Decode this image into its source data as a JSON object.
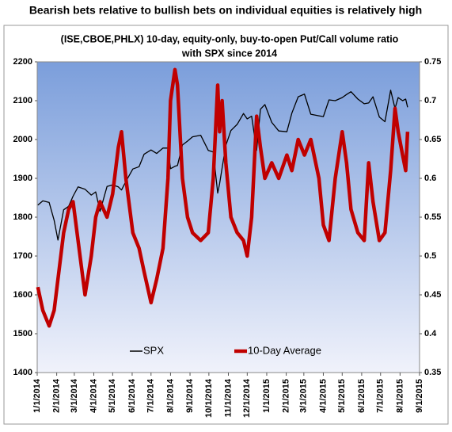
{
  "chart_data": {
    "type": "line",
    "suptitle": "Bearish bets relative to bullish bets on individual equities is relatively high",
    "title": [
      "(ISE,CBOE,PHLX) 10-day, equity-only, buy-to-open Put/Call volume ratio",
      "with SPX since 2014"
    ],
    "x": [
      "1/2/2014",
      "1/10/2014",
      "1/20/2014",
      "1/28/2014",
      "2/3/2014",
      "2/12/2014",
      "2/20/2014",
      "2/27/2014",
      "3/7/2014",
      "3/18/2014",
      "3/28/2014",
      "4/4/2014",
      "4/11/2014",
      "4/22/2014",
      "5/1/2014",
      "5/10/2014",
      "5/15/2014",
      "5/22/2014",
      "6/2/2014",
      "6/12/2014",
      "6/20/2014",
      "7/1/2014",
      "7/10/2014",
      "7/20/2014",
      "7/28/2014",
      "8/1/2014",
      "8/8/2014",
      "8/12/2014",
      "8/20/2014",
      "8/28/2014",
      "9/5/2014",
      "9/18/2014",
      "9/30/2014",
      "10/8/2014",
      "10/15/2014",
      "10/18/2014",
      "10/22/2014",
      "10/28/2014",
      "11/5/2014",
      "11/15/2014",
      "11/25/2014",
      "12/1/2014",
      "12/8/2014",
      "12/16/2014",
      "12/22/2014",
      "12/29/2014",
      "1/9/2015",
      "1/20/2015",
      "2/2/2015",
      "2/10/2015",
      "2/20/2015",
      "3/2/2015",
      "3/12/2015",
      "3/25/2015",
      "4/1/2015",
      "4/10/2015",
      "4/20/2015",
      "5/1/2015",
      "5/8/2015",
      "5/15/2015",
      "5/26/2015",
      "6/5/2015",
      "6/12/2015",
      "6/19/2015",
      "6/29/2015",
      "7/8/2015",
      "7/17/2015",
      "7/24/2015",
      "7/29/2015",
      "8/5/2015",
      "8/10/2015",
      "8/13/2015"
    ],
    "series": [
      {
        "name": "SPX",
        "color": "#000000",
        "axis": "y",
        "values": [
          1831,
          1842,
          1838,
          1792,
          1741,
          1819,
          1828,
          1854,
          1878,
          1872,
          1857,
          1865,
          1815,
          1879,
          1883,
          1878,
          1870,
          1892,
          1924,
          1930,
          1962,
          1973,
          1964,
          1978,
          1978,
          1925,
          1931,
          1933,
          1986,
          1996,
          2007,
          2011,
          1972,
          1968,
          1862,
          1886,
          1927,
          1985,
          2023,
          2039,
          2067,
          2053,
          2060,
          1972,
          2078,
          2090,
          2044,
          2022,
          2020,
          2068,
          2110,
          2117,
          2065,
          2061,
          2059,
          2102,
          2100,
          2108,
          2116,
          2123,
          2104,
          2092,
          2094,
          2110,
          2058,
          2046,
          2127,
          2080,
          2108,
          2100,
          2104,
          2083
        ]
      },
      {
        "name": "10-Day Average",
        "color": "#c00000",
        "axis": "y2",
        "values": [
          0.46,
          0.43,
          0.41,
          0.43,
          0.47,
          0.53,
          0.56,
          0.57,
          0.52,
          0.45,
          0.5,
          0.55,
          0.57,
          0.55,
          0.58,
          0.64,
          0.66,
          0.6,
          0.53,
          0.51,
          0.48,
          0.44,
          0.47,
          0.51,
          0.6,
          0.7,
          0.74,
          0.72,
          0.6,
          0.55,
          0.53,
          0.52,
          0.53,
          0.6,
          0.72,
          0.66,
          0.7,
          0.62,
          0.55,
          0.53,
          0.52,
          0.5,
          0.55,
          0.68,
          0.64,
          0.6,
          0.62,
          0.6,
          0.63,
          0.61,
          0.65,
          0.63,
          0.65,
          0.6,
          0.54,
          0.52,
          0.6,
          0.66,
          0.62,
          0.56,
          0.53,
          0.52,
          0.62,
          0.57,
          0.52,
          0.53,
          0.61,
          0.69,
          0.66,
          0.63,
          0.61,
          0.66
        ]
      }
    ],
    "xticks": [
      "1/1/2014",
      "2/1/2014",
      "3/1/2014",
      "4/1/2014",
      "5/1/2014",
      "6/1/2014",
      "7/1/2014",
      "8/1/2014",
      "9/1/2014",
      "10/1/2014",
      "11/1/2014",
      "12/1/2014",
      "1/1/2015",
      "2/1/2015",
      "3/1/2015",
      "4/1/2015",
      "5/1/2015",
      "6/1/2015",
      "7/1/2015",
      "8/1/2015",
      "9/1/2015"
    ],
    "ylim": [
      1400,
      2200
    ],
    "yticks": [
      1400,
      1500,
      1600,
      1700,
      1800,
      1900,
      2000,
      2100,
      2200
    ],
    "y2lim": [
      0.35,
      0.75
    ],
    "y2ticks": [
      0.35,
      0.4,
      0.45,
      0.5,
      0.55,
      0.6,
      0.65,
      0.7,
      0.75
    ],
    "legend": "bottom-center"
  }
}
